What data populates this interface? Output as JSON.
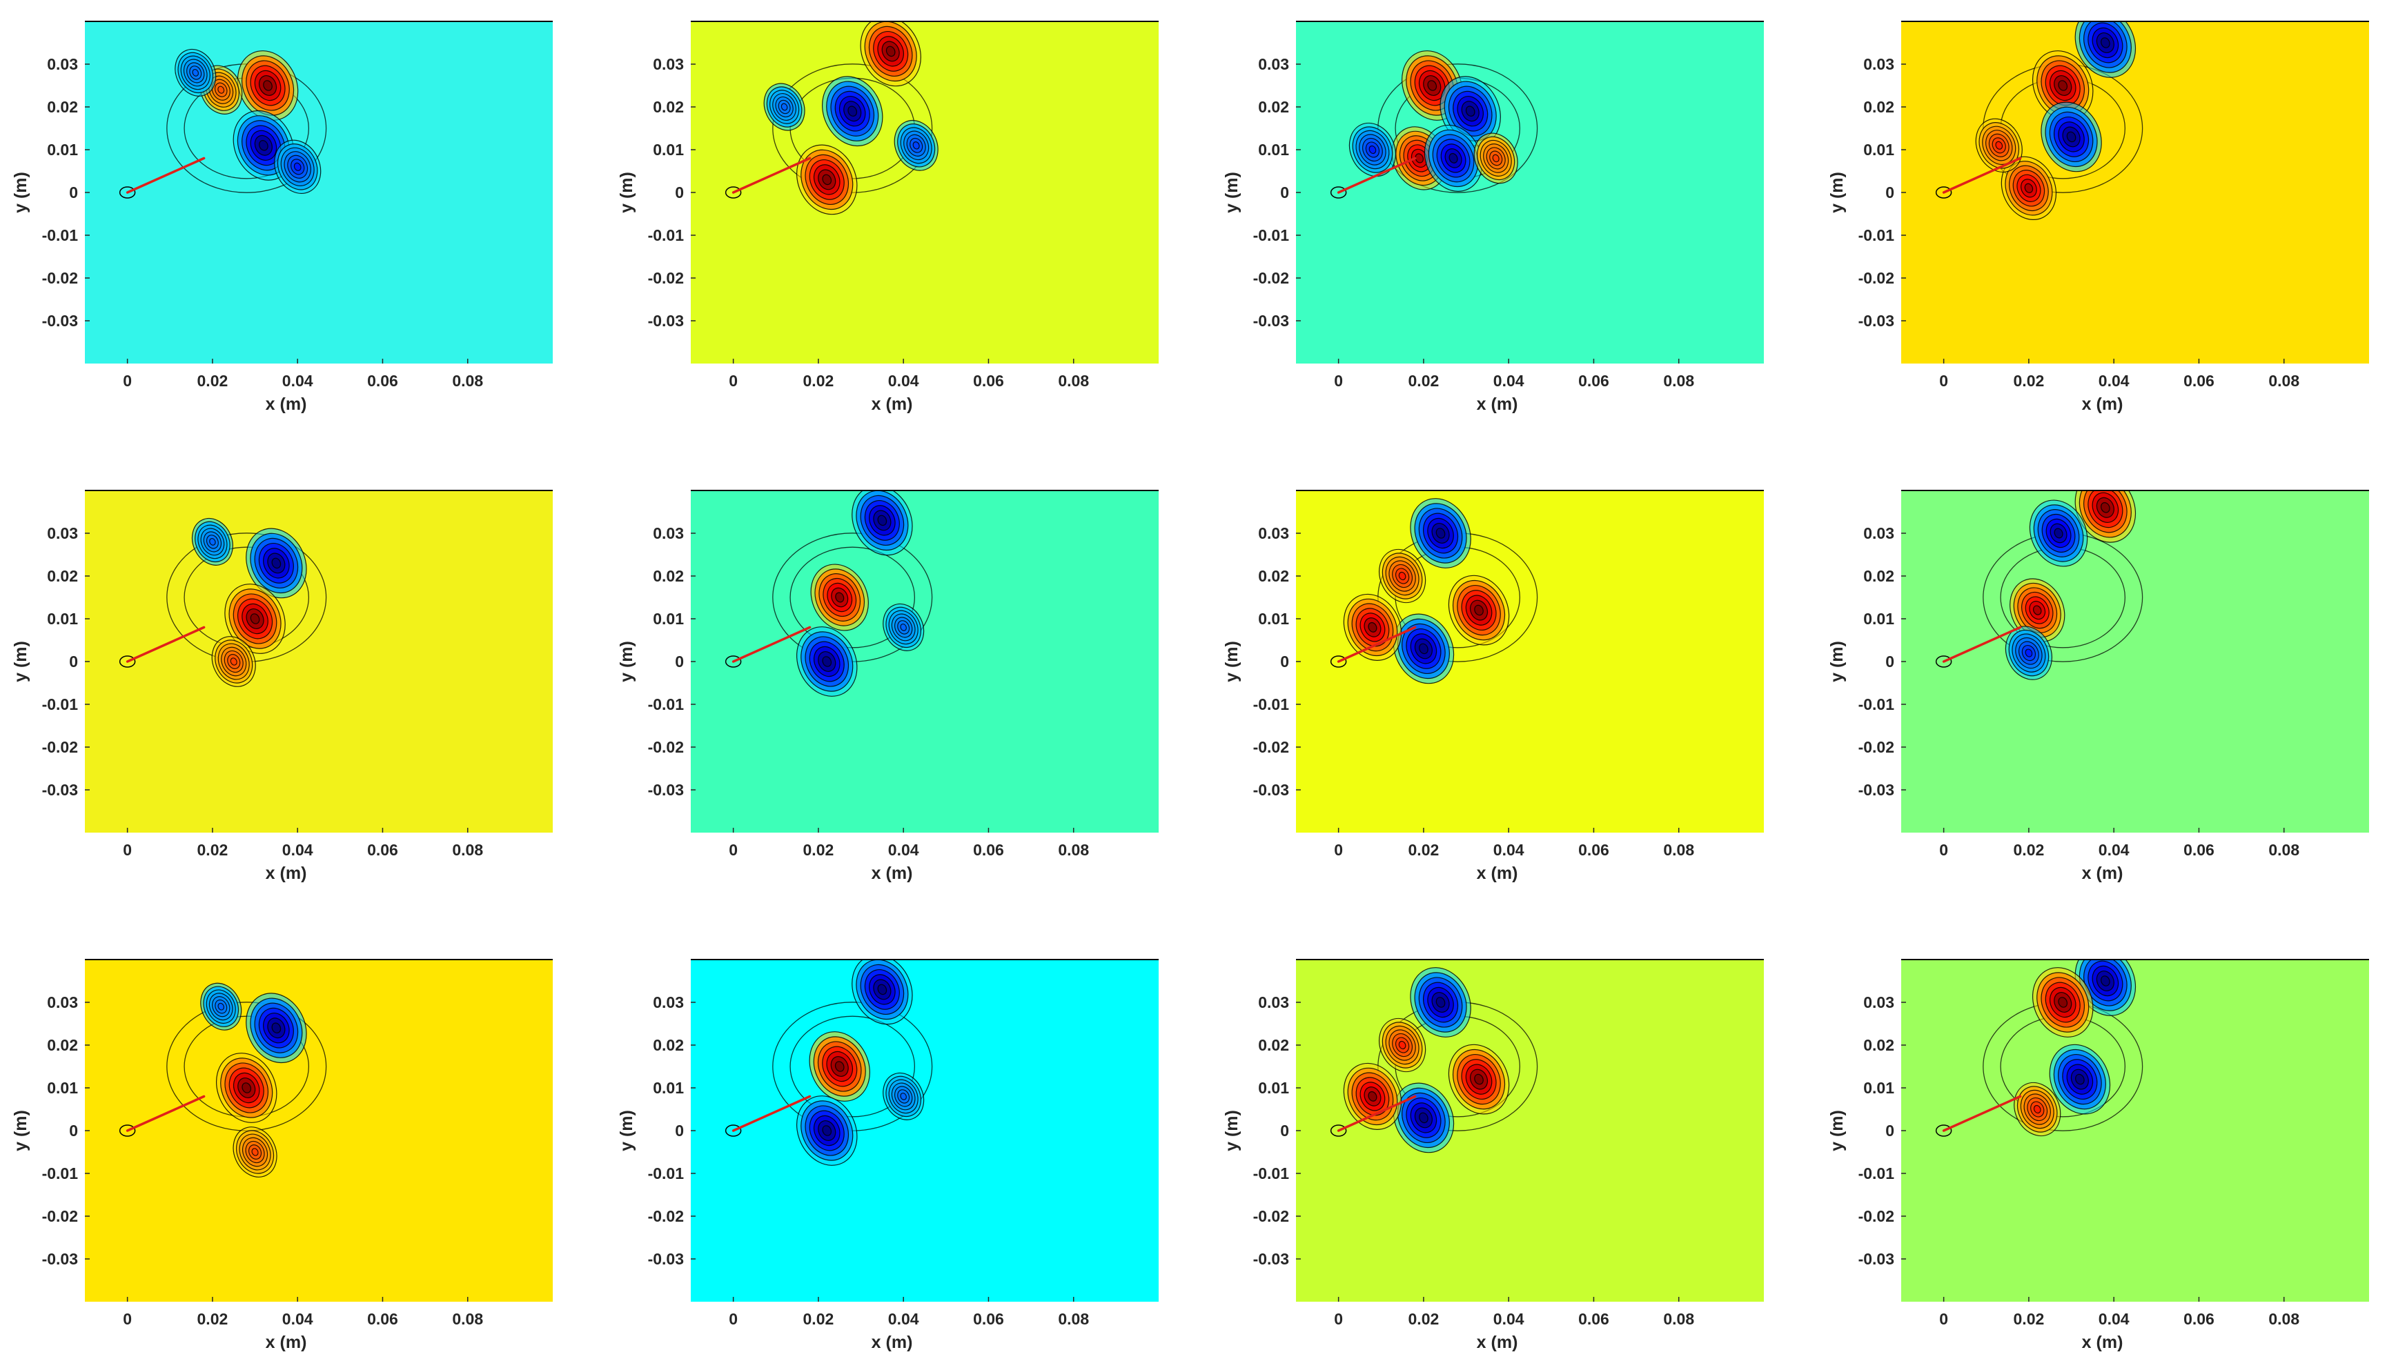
{
  "figure": {
    "layout": "3x4 grid of contour plots",
    "background": "#ffffff"
  },
  "chart_data": [
    {
      "type": "heatmap",
      "row": 1,
      "col": 1,
      "background_color": "#33f5ea",
      "xlabel": "x (m)",
      "ylabel": "y (m)",
      "xlim": [
        -0.01,
        0.1
      ],
      "ylim": [
        -0.04,
        0.04
      ],
      "xticks": [
        "0",
        "0.02",
        "0.04",
        "0.06",
        "0.08"
      ],
      "yticks": [
        "0.03",
        "0.02",
        "0.01",
        "0",
        "-0.01",
        "-0.02",
        "-0.03"
      ],
      "grid": false,
      "colormap": "jet",
      "contour_lines": true,
      "red_line": {
        "from": [
          0,
          0
        ],
        "to": [
          0.018,
          0.008
        ]
      },
      "features": [
        {
          "x": 0.033,
          "y": 0.025,
          "sign": "+",
          "strength": 1.0
        },
        {
          "x": 0.032,
          "y": 0.011,
          "sign": "-",
          "strength": 1.0
        },
        {
          "x": 0.022,
          "y": 0.024,
          "sign": "+",
          "strength": 0.35
        },
        {
          "x": 0.016,
          "y": 0.028,
          "sign": "-",
          "strength": 0.3
        },
        {
          "x": 0.04,
          "y": 0.006,
          "sign": "-",
          "strength": 0.5
        }
      ]
    },
    {
      "type": "heatmap",
      "row": 1,
      "col": 2,
      "background_color": "#dfff1f",
      "xlabel": "x (m)",
      "ylabel": "y (m)",
      "xlim": [
        -0.01,
        0.1
      ],
      "ylim": [
        -0.04,
        0.04
      ],
      "xticks": [
        "0",
        "0.02",
        "0.04",
        "0.06",
        "0.08"
      ],
      "yticks": [
        "0.03",
        "0.02",
        "0.01",
        "0",
        "-0.01",
        "-0.02",
        "-0.03"
      ],
      "grid": false,
      "colormap": "jet",
      "contour_lines": true,
      "red_line": {
        "from": [
          0,
          0
        ],
        "to": [
          0.018,
          0.008
        ]
      },
      "features": [
        {
          "x": 0.037,
          "y": 0.033,
          "sign": "+",
          "strength": 1.0
        },
        {
          "x": 0.028,
          "y": 0.019,
          "sign": "-",
          "strength": 1.0
        },
        {
          "x": 0.022,
          "y": 0.003,
          "sign": "+",
          "strength": 1.0
        },
        {
          "x": 0.043,
          "y": 0.011,
          "sign": "-",
          "strength": 0.4
        },
        {
          "x": 0.012,
          "y": 0.02,
          "sign": "-",
          "strength": 0.3
        }
      ]
    },
    {
      "type": "heatmap",
      "row": 1,
      "col": 3,
      "background_color": "#3dffc2",
      "xlabel": "x (m)",
      "ylabel": "y (m)",
      "xlim": [
        -0.01,
        0.1
      ],
      "ylim": [
        -0.04,
        0.04
      ],
      "xticks": [
        "0",
        "0.02",
        "0.04",
        "0.06",
        "0.08"
      ],
      "yticks": [
        "0.03",
        "0.02",
        "0.01",
        "0",
        "-0.01",
        "-0.02",
        "-0.03"
      ],
      "grid": false,
      "colormap": "jet",
      "contour_lines": true,
      "red_line": {
        "from": [
          0,
          0
        ],
        "to": [
          0.018,
          0.008
        ]
      },
      "features": [
        {
          "x": 0.022,
          "y": 0.025,
          "sign": "+",
          "strength": 1.0
        },
        {
          "x": 0.031,
          "y": 0.019,
          "sign": "-",
          "strength": 1.0
        },
        {
          "x": 0.019,
          "y": 0.008,
          "sign": "+",
          "strength": 0.8
        },
        {
          "x": 0.027,
          "y": 0.008,
          "sign": "-",
          "strength": 0.9
        },
        {
          "x": 0.008,
          "y": 0.01,
          "sign": "-",
          "strength": 0.5
        },
        {
          "x": 0.037,
          "y": 0.008,
          "sign": "+",
          "strength": 0.4
        }
      ]
    },
    {
      "type": "heatmap",
      "row": 1,
      "col": 4,
      "background_color": "#ffe100",
      "xlabel": "x (m)",
      "ylabel": "y (m)",
      "xlim": [
        -0.01,
        0.1
      ],
      "ylim": [
        -0.04,
        0.04
      ],
      "xticks": [
        "0",
        "0.02",
        "0.04",
        "0.06",
        "0.08"
      ],
      "yticks": [
        "0.03",
        "0.02",
        "0.01",
        "0",
        "-0.01",
        "-0.02",
        "-0.03"
      ],
      "grid": false,
      "colormap": "jet",
      "contour_lines": true,
      "red_line": {
        "from": [
          0,
          0
        ],
        "to": [
          0.018,
          0.008
        ]
      },
      "features": [
        {
          "x": 0.038,
          "y": 0.035,
          "sign": "-",
          "strength": 1.0
        },
        {
          "x": 0.028,
          "y": 0.025,
          "sign": "+",
          "strength": 1.0
        },
        {
          "x": 0.03,
          "y": 0.013,
          "sign": "-",
          "strength": 1.0
        },
        {
          "x": 0.02,
          "y": 0.001,
          "sign": "+",
          "strength": 0.8
        },
        {
          "x": 0.013,
          "y": 0.011,
          "sign": "+",
          "strength": 0.5
        }
      ]
    },
    {
      "type": "heatmap",
      "row": 2,
      "col": 1,
      "background_color": "#f2f21a",
      "xlabel": "x (m)",
      "ylabel": "y (m)",
      "xlim": [
        -0.01,
        0.1
      ],
      "ylim": [
        -0.04,
        0.04
      ],
      "xticks": [
        "0",
        "0.02",
        "0.04",
        "0.06",
        "0.08"
      ],
      "yticks": [
        "0.03",
        "0.02",
        "0.01",
        "0",
        "-0.01",
        "-0.02",
        "-0.03"
      ],
      "grid": false,
      "colormap": "jet",
      "contour_lines": true,
      "red_line": {
        "from": [
          0,
          0
        ],
        "to": [
          0.018,
          0.008
        ]
      },
      "features": [
        {
          "x": 0.035,
          "y": 0.023,
          "sign": "-",
          "strength": 1.0
        },
        {
          "x": 0.03,
          "y": 0.01,
          "sign": "+",
          "strength": 1.0
        },
        {
          "x": 0.02,
          "y": 0.028,
          "sign": "-",
          "strength": 0.3
        },
        {
          "x": 0.025,
          "y": 0.0,
          "sign": "+",
          "strength": 0.4
        }
      ]
    },
    {
      "type": "heatmap",
      "row": 2,
      "col": 2,
      "background_color": "#3dffb8",
      "xlabel": "x (m)",
      "ylabel": "y (m)",
      "xlim": [
        -0.01,
        0.1
      ],
      "ylim": [
        -0.04,
        0.04
      ],
      "xticks": [
        "0",
        "0.02",
        "0.04",
        "0.06",
        "0.08"
      ],
      "yticks": [
        "0.03",
        "0.02",
        "0.01",
        "0",
        "-0.01",
        "-0.02",
        "-0.03"
      ],
      "grid": false,
      "colormap": "jet",
      "contour_lines": true,
      "red_line": {
        "from": [
          0,
          0
        ],
        "to": [
          0.018,
          0.008
        ]
      },
      "features": [
        {
          "x": 0.035,
          "y": 0.033,
          "sign": "-",
          "strength": 1.0
        },
        {
          "x": 0.025,
          "y": 0.015,
          "sign": "+",
          "strength": 0.9
        },
        {
          "x": 0.022,
          "y": 0.0,
          "sign": "-",
          "strength": 1.0
        },
        {
          "x": 0.04,
          "y": 0.008,
          "sign": "-",
          "strength": 0.3
        }
      ]
    },
    {
      "type": "heatmap",
      "row": 2,
      "col": 3,
      "background_color": "#f0ff10",
      "xlabel": "x (m)",
      "ylabel": "y (m)",
      "xlim": [
        -0.01,
        0.1
      ],
      "ylim": [
        -0.04,
        0.04
      ],
      "xticks": [
        "0",
        "0.02",
        "0.04",
        "0.06",
        "0.08"
      ],
      "yticks": [
        "0.03",
        "0.02",
        "0.01",
        "0",
        "-0.01",
        "-0.02",
        "-0.03"
      ],
      "grid": false,
      "colormap": "jet",
      "contour_lines": true,
      "red_line": {
        "from": [
          0,
          0
        ],
        "to": [
          0.018,
          0.008
        ]
      },
      "features": [
        {
          "x": 0.024,
          "y": 0.03,
          "sign": "-",
          "strength": 1.0
        },
        {
          "x": 0.033,
          "y": 0.012,
          "sign": "+",
          "strength": 1.0
        },
        {
          "x": 0.02,
          "y": 0.003,
          "sign": "-",
          "strength": 1.0
        },
        {
          "x": 0.008,
          "y": 0.008,
          "sign": "+",
          "strength": 0.9
        },
        {
          "x": 0.015,
          "y": 0.02,
          "sign": "+",
          "strength": 0.5
        }
      ]
    },
    {
      "type": "heatmap",
      "row": 2,
      "col": 4,
      "background_color": "#7fff7f",
      "xlabel": "x (m)",
      "ylabel": "y (m)",
      "xlim": [
        -0.01,
        0.1
      ],
      "ylim": [
        -0.04,
        0.04
      ],
      "xticks": [
        "0",
        "0.02",
        "0.04",
        "0.06",
        "0.08"
      ],
      "yticks": [
        "0.03",
        "0.02",
        "0.01",
        "0",
        "-0.01",
        "-0.02",
        "-0.03"
      ],
      "grid": false,
      "colormap": "jet",
      "contour_lines": true,
      "red_line": {
        "from": [
          0,
          0
        ],
        "to": [
          0.018,
          0.008
        ]
      },
      "features": [
        {
          "x": 0.038,
          "y": 0.036,
          "sign": "+",
          "strength": 1.0
        },
        {
          "x": 0.027,
          "y": 0.03,
          "sign": "-",
          "strength": 0.9
        },
        {
          "x": 0.022,
          "y": 0.012,
          "sign": "+",
          "strength": 0.8
        },
        {
          "x": 0.02,
          "y": 0.002,
          "sign": "-",
          "strength": 0.5
        }
      ]
    },
    {
      "type": "heatmap",
      "row": 3,
      "col": 1,
      "background_color": "#ffe600",
      "xlabel": "x (m)",
      "ylabel": "y (m)",
      "xlim": [
        -0.01,
        0.1
      ],
      "ylim": [
        -0.04,
        0.04
      ],
      "xticks": [
        "0",
        "0.02",
        "0.04",
        "0.06",
        "0.08"
      ],
      "yticks": [
        "0.03",
        "0.02",
        "0.01",
        "0",
        "-0.01",
        "-0.02",
        "-0.03"
      ],
      "grid": false,
      "colormap": "jet",
      "contour_lines": true,
      "red_line": {
        "from": [
          0,
          0
        ],
        "to": [
          0.018,
          0.008
        ]
      },
      "features": [
        {
          "x": 0.035,
          "y": 0.024,
          "sign": "-",
          "strength": 1.0
        },
        {
          "x": 0.028,
          "y": 0.01,
          "sign": "+",
          "strength": 1.0
        },
        {
          "x": 0.022,
          "y": 0.029,
          "sign": "-",
          "strength": 0.3
        },
        {
          "x": 0.03,
          "y": -0.005,
          "sign": "+",
          "strength": 0.4
        }
      ]
    },
    {
      "type": "heatmap",
      "row": 3,
      "col": 2,
      "background_color": "#00ffff",
      "xlabel": "x (m)",
      "ylabel": "y (m)",
      "xlim": [
        -0.01,
        0.1
      ],
      "ylim": [
        -0.04,
        0.04
      ],
      "xticks": [
        "0",
        "0.02",
        "0.04",
        "0.06",
        "0.08"
      ],
      "yticks": [
        "0.03",
        "0.02",
        "0.01",
        "0",
        "-0.01",
        "-0.02",
        "-0.03"
      ],
      "grid": false,
      "colormap": "jet",
      "contour_lines": true,
      "red_line": {
        "from": [
          0,
          0
        ],
        "to": [
          0.018,
          0.008
        ]
      },
      "features": [
        {
          "x": 0.035,
          "y": 0.033,
          "sign": "-",
          "strength": 1.0
        },
        {
          "x": 0.025,
          "y": 0.015,
          "sign": "+",
          "strength": 1.0
        },
        {
          "x": 0.022,
          "y": 0.0,
          "sign": "-",
          "strength": 1.0
        },
        {
          "x": 0.04,
          "y": 0.008,
          "sign": "-",
          "strength": 0.3
        }
      ]
    },
    {
      "type": "heatmap",
      "row": 3,
      "col": 3,
      "background_color": "#c8ff30",
      "xlabel": "x (m)",
      "ylabel": "y (m)",
      "xlim": [
        -0.01,
        0.1
      ],
      "ylim": [
        -0.04,
        0.04
      ],
      "xticks": [
        "0",
        "0.02",
        "0.04",
        "0.06",
        "0.08"
      ],
      "yticks": [
        "0.03",
        "0.02",
        "0.01",
        "0",
        "-0.01",
        "-0.02",
        "-0.03"
      ],
      "grid": false,
      "colormap": "jet",
      "contour_lines": true,
      "red_line": {
        "from": [
          0,
          0
        ],
        "to": [
          0.018,
          0.008
        ]
      },
      "features": [
        {
          "x": 0.024,
          "y": 0.03,
          "sign": "-",
          "strength": 1.0
        },
        {
          "x": 0.033,
          "y": 0.012,
          "sign": "+",
          "strength": 1.0
        },
        {
          "x": 0.02,
          "y": 0.003,
          "sign": "-",
          "strength": 1.0
        },
        {
          "x": 0.008,
          "y": 0.008,
          "sign": "+",
          "strength": 0.9
        },
        {
          "x": 0.015,
          "y": 0.02,
          "sign": "+",
          "strength": 0.5
        }
      ]
    },
    {
      "type": "heatmap",
      "row": 3,
      "col": 4,
      "background_color": "#9dff5c",
      "xlabel": "x (m)",
      "ylabel": "y (m)",
      "xlim": [
        -0.01,
        0.1
      ],
      "ylim": [
        -0.04,
        0.04
      ],
      "xticks": [
        "0",
        "0.02",
        "0.04",
        "0.06",
        "0.08"
      ],
      "yticks": [
        "0.03",
        "0.02",
        "0.01",
        "0",
        "-0.01",
        "-0.02",
        "-0.03"
      ],
      "grid": false,
      "colormap": "jet",
      "contour_lines": true,
      "red_line": {
        "from": [
          0,
          0
        ],
        "to": [
          0.018,
          0.008
        ]
      },
      "features": [
        {
          "x": 0.038,
          "y": 0.035,
          "sign": "-",
          "strength": 1.0
        },
        {
          "x": 0.028,
          "y": 0.03,
          "sign": "+",
          "strength": 1.0
        },
        {
          "x": 0.032,
          "y": 0.012,
          "sign": "-",
          "strength": 1.0
        },
        {
          "x": 0.022,
          "y": 0.005,
          "sign": "+",
          "strength": 0.5
        }
      ]
    }
  ]
}
